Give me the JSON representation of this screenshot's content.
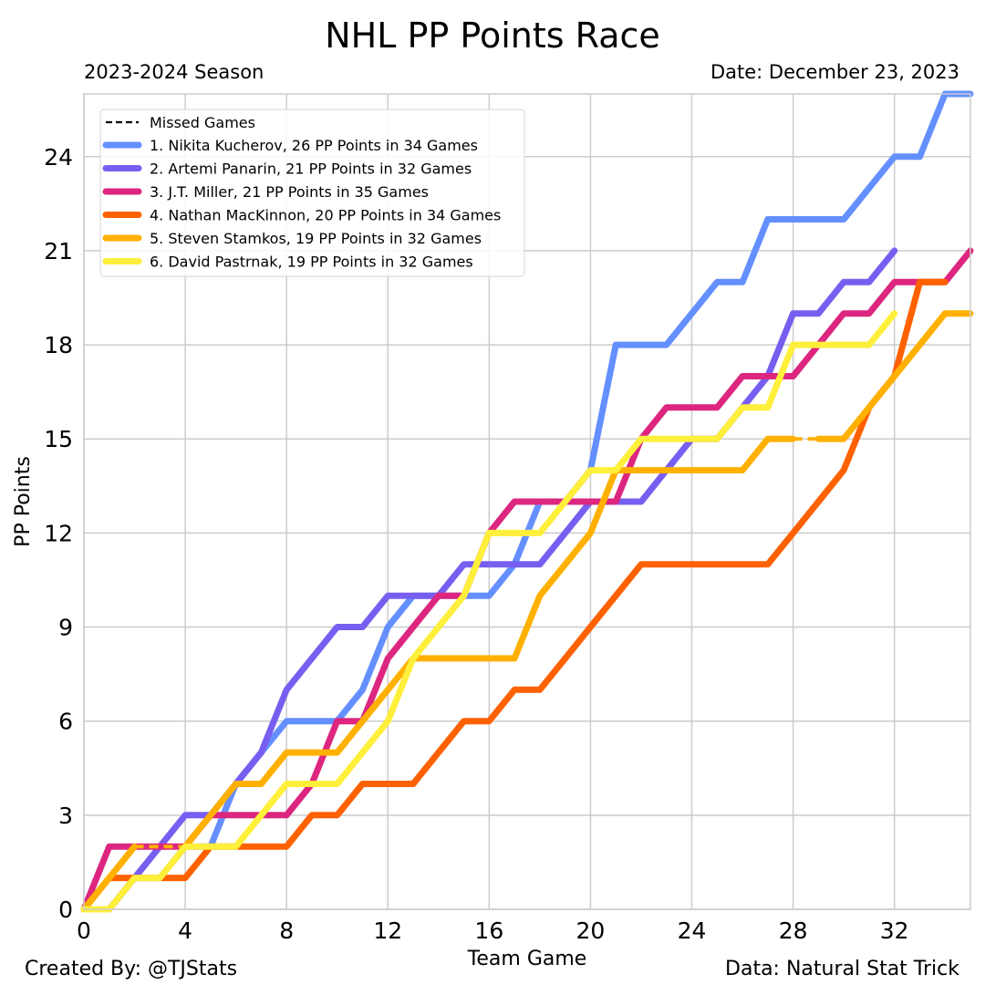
{
  "chart_data": {
    "type": "line",
    "title": "NHL PP Points Race",
    "subtitle_left": "2023-2024 Season",
    "subtitle_right": "Date: December 23, 2023",
    "xlabel": "Team Game",
    "ylabel": "PP Points",
    "xlim": [
      0,
      35
    ],
    "ylim": [
      0,
      26
    ],
    "xticks": [
      0,
      4,
      8,
      12,
      16,
      20,
      24,
      28,
      32
    ],
    "yticks": [
      0,
      3,
      6,
      9,
      12,
      15,
      18,
      21,
      24
    ],
    "grid": true,
    "legend_position": "top-left",
    "legend_missed_label": "Missed Games",
    "footer_left": "Created By: @TJStats",
    "footer_right": "Data: Natural Stat Trick",
    "series": [
      {
        "name": "1. Nikita Kucherov, 26 PP Points in 34 Games",
        "color": "#648FFF",
        "x": [
          0,
          1,
          2,
          3,
          4,
          5,
          6,
          7,
          8,
          9,
          10,
          11,
          12,
          13,
          14,
          15,
          16,
          17,
          18,
          19,
          20,
          21,
          22,
          23,
          24,
          25,
          26,
          27,
          28,
          29,
          30,
          31,
          32,
          33,
          34,
          35
        ],
        "y": [
          0,
          0,
          1,
          1,
          2,
          2,
          4,
          5,
          6,
          6,
          6,
          7,
          9,
          10,
          10,
          10,
          10,
          11,
          13,
          13,
          14,
          18,
          18,
          18,
          19,
          20,
          20,
          22,
          22,
          22,
          22,
          23,
          24,
          24,
          26,
          26
        ],
        "missed_segments": []
      },
      {
        "name": "2. Artemi Panarin, 21 PP Points in 32 Games",
        "color": "#785EF0",
        "x": [
          0,
          1,
          2,
          3,
          4,
          5,
          6,
          7,
          8,
          9,
          10,
          11,
          12,
          13,
          14,
          15,
          16,
          17,
          18,
          19,
          20,
          21,
          22,
          23,
          24,
          25,
          26,
          27,
          28,
          29,
          30,
          31,
          32
        ],
        "y": [
          0,
          0,
          1,
          2,
          3,
          3,
          4,
          5,
          7,
          8,
          9,
          9,
          10,
          10,
          10,
          11,
          11,
          11,
          11,
          12,
          13,
          13,
          13,
          14,
          15,
          15,
          16,
          17,
          19,
          19,
          20,
          20,
          21
        ],
        "missed_segments": []
      },
      {
        "name": "3. J.T. Miller, 21 PP Points in 35 Games",
        "color": "#DC267F",
        "x": [
          0,
          1,
          2,
          3,
          4,
          5,
          6,
          7,
          8,
          9,
          10,
          11,
          12,
          13,
          14,
          15,
          16,
          17,
          18,
          19,
          20,
          21,
          22,
          23,
          24,
          25,
          26,
          27,
          28,
          29,
          30,
          31,
          32,
          33,
          34,
          35
        ],
        "y": [
          0,
          2,
          2,
          2,
          2,
          3,
          3,
          3,
          3,
          4,
          6,
          6,
          8,
          9,
          10,
          10,
          12,
          13,
          13,
          13,
          13,
          13,
          15,
          16,
          16,
          16,
          17,
          17,
          17,
          18,
          19,
          19,
          20,
          20,
          20,
          21
        ],
        "missed_segments": []
      },
      {
        "name": "4. Nathan MacKinnon, 20 PP Points in 34 Games",
        "color": "#FE6100",
        "x": [
          0,
          1,
          2,
          3,
          4,
          5,
          6,
          7,
          8,
          9,
          10,
          11,
          12,
          13,
          14,
          15,
          16,
          17,
          18,
          19,
          20,
          21,
          22,
          23,
          24,
          25,
          26,
          27,
          28,
          29,
          30,
          31,
          32,
          33,
          34
        ],
        "y": [
          0,
          1,
          1,
          1,
          1,
          2,
          2,
          2,
          2,
          3,
          3,
          4,
          4,
          4,
          5,
          6,
          6,
          7,
          7,
          8,
          9,
          10,
          11,
          11,
          11,
          11,
          11,
          11,
          12,
          13,
          14,
          16,
          17,
          20,
          20
        ],
        "missed_segments": []
      },
      {
        "name": "5. Steven Stamkos, 19 PP Points in 32 Games",
        "color": "#FFB000",
        "x": [
          0,
          1,
          2,
          3,
          4,
          5,
          6,
          7,
          8,
          9,
          10,
          11,
          12,
          13,
          14,
          15,
          16,
          17,
          18,
          19,
          20,
          21,
          22,
          23,
          24,
          25,
          26,
          27,
          28,
          29,
          30,
          31,
          32,
          33,
          34,
          35
        ],
        "y": [
          0,
          1,
          2,
          2,
          2,
          3,
          4,
          4,
          5,
          5,
          5,
          6,
          7,
          8,
          8,
          8,
          8,
          8,
          10,
          11,
          12,
          14,
          14,
          14,
          14,
          14,
          14,
          15,
          15,
          15,
          15,
          16,
          17,
          18,
          19,
          19
        ],
        "missed_segments": [
          [
            2,
            4
          ],
          [
            28,
            29
          ]
        ]
      },
      {
        "name": "6. David Pastrnak, 19 PP Points in 32 Games",
        "color": "#FEEF3A",
        "x": [
          0,
          1,
          2,
          3,
          4,
          5,
          6,
          7,
          8,
          9,
          10,
          11,
          12,
          13,
          14,
          15,
          16,
          17,
          18,
          19,
          20,
          21,
          22,
          23,
          24,
          25,
          26,
          27,
          28,
          29,
          30,
          31,
          32
        ],
        "y": [
          0,
          0,
          1,
          1,
          2,
          2,
          2,
          3,
          4,
          4,
          4,
          5,
          6,
          8,
          9,
          10,
          12,
          12,
          12,
          13,
          14,
          14,
          15,
          15,
          15,
          15,
          16,
          16,
          18,
          18,
          18,
          18,
          19
        ],
        "missed_segments": []
      }
    ]
  }
}
